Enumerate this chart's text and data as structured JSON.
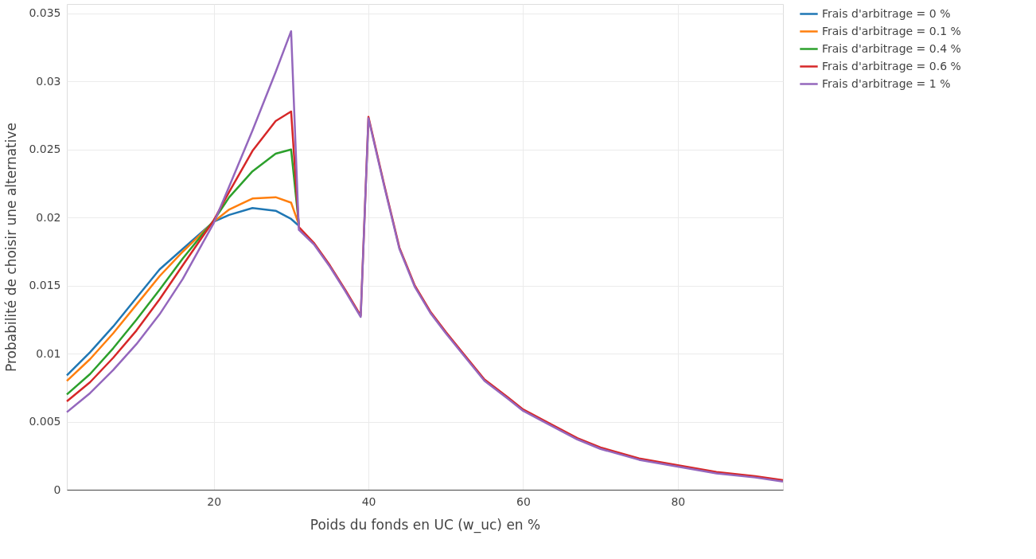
{
  "chart_data": {
    "type": "line",
    "xlabel": "Poids du fonds en  UC (w_uc)  en %",
    "ylabel": "Probabilité de choisir une alternative",
    "x": [
      1,
      4,
      7,
      10,
      13,
      16,
      20,
      22,
      25,
      28,
      30,
      31,
      33,
      35,
      37,
      39,
      40,
      42,
      44,
      46,
      48,
      50,
      52,
      55,
      58,
      60,
      63,
      65,
      67,
      70,
      75,
      80,
      85,
      90,
      93.6
    ],
    "series": [
      {
        "name": "Frais d'arbitrage = 0 %",
        "color": "#1f77b4",
        "values": [
          0.0084,
          0.0101,
          0.012,
          0.0141,
          0.0162,
          0.0177,
          0.0197,
          0.0202,
          0.0207,
          0.0205,
          0.0199,
          0.0194,
          null,
          null,
          null,
          null,
          null,
          null,
          null,
          null,
          null,
          null,
          null,
          null,
          null,
          null,
          null,
          null,
          null,
          null,
          null,
          null,
          null,
          null,
          null
        ]
      },
      {
        "name": "Frais d'arbitrage = 0.1 %",
        "color": "#ff7f0e",
        "values": [
          0.008,
          0.0096,
          0.0115,
          0.0136,
          0.0157,
          0.0175,
          0.0197,
          0.0206,
          0.0214,
          0.0215,
          0.0211,
          0.0195,
          null,
          null,
          null,
          null,
          null,
          null,
          null,
          null,
          null,
          null,
          null,
          null,
          null,
          null,
          null,
          null,
          null,
          null,
          null,
          null,
          null,
          null,
          null
        ]
      },
      {
        "name": "Frais d'arbitrage = 0.4 %",
        "color": "#2ca02c",
        "values": [
          0.007,
          0.0085,
          0.0104,
          0.0125,
          0.0147,
          0.017,
          0.0198,
          0.0215,
          0.0234,
          0.0247,
          0.025,
          0.0195,
          null,
          null,
          null,
          null,
          null,
          null,
          null,
          null,
          null,
          null,
          null,
          null,
          null,
          null,
          null,
          null,
          null,
          null,
          null,
          null,
          null,
          null,
          null
        ]
      },
      {
        "name": "Frais d'arbitrage = 0.6 %",
        "color": "#d62728",
        "values": [
          0.0065,
          0.0079,
          0.0097,
          0.0117,
          0.014,
          0.0165,
          0.0198,
          0.0219,
          0.0249,
          0.0271,
          0.0278,
          0.0193,
          0.0181,
          0.0165,
          0.0147,
          0.0128,
          0.0274,
          0.0225,
          0.0178,
          0.015,
          0.0131,
          0.0116,
          0.0102,
          0.0081,
          0.0068,
          0.0059,
          0.005,
          0.0044,
          0.0038,
          0.0031,
          0.0023,
          0.0018,
          0.0013,
          0.001,
          0.0007
        ]
      },
      {
        "name": "Frais d'arbitrage = 1 %",
        "color": "#9467bd",
        "values": [
          0.0057,
          0.0071,
          0.0088,
          0.0107,
          0.0129,
          0.0155,
          0.0196,
          0.0223,
          0.0264,
          0.0307,
          0.0337,
          0.0191,
          0.018,
          0.0164,
          0.0146,
          0.0127,
          0.0273,
          0.0224,
          0.0177,
          0.0149,
          0.013,
          0.0115,
          0.0101,
          0.008,
          0.0067,
          0.0058,
          0.0049,
          0.0043,
          0.0037,
          0.003,
          0.0022,
          0.0017,
          0.0012,
          0.0009,
          0.0006
        ]
      }
    ],
    "xlim": [
      1,
      93.6
    ],
    "xticks": [
      20,
      40,
      60,
      80
    ],
    "ylim": [
      0,
      0.0357
    ],
    "yticks": [
      0,
      0.005,
      0.01,
      0.015,
      0.02,
      0.025,
      0.03,
      0.035
    ],
    "grid": true,
    "legend": "top right",
    "marker": "none",
    "line_style": "solid"
  }
}
